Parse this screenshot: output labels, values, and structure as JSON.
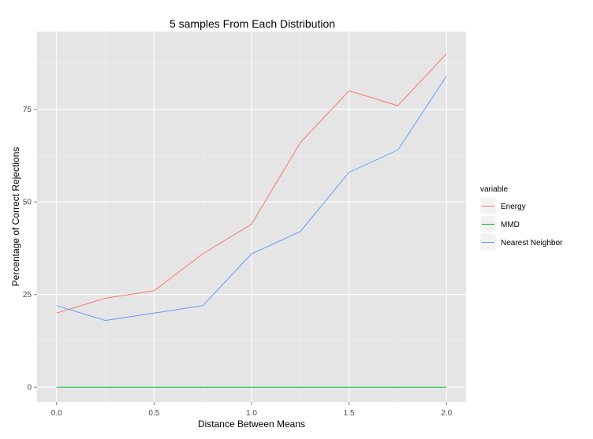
{
  "chart_data": {
    "type": "line",
    "title": "5 samples From Each Distribution",
    "xlabel": "Distance Between Means",
    "ylabel": "Percentage of Correct Rejections",
    "x": [
      0.0,
      0.25,
      0.5,
      0.75,
      1.0,
      1.25,
      1.5,
      1.75,
      2.0
    ],
    "xlim": [
      -0.1,
      2.1
    ],
    "ylim": [
      -4,
      96
    ],
    "x_ticks": [
      "0.0",
      "0.5",
      "1.0",
      "1.5",
      "2.0"
    ],
    "x_tick_values": [
      0.0,
      0.5,
      1.0,
      1.5,
      2.0
    ],
    "y_ticks": [
      "0",
      "25",
      "50",
      "75"
    ],
    "y_tick_values": [
      0,
      25,
      50,
      75
    ],
    "grid": true,
    "legend_placement": "right",
    "legend_title": "variable",
    "series": [
      {
        "name": "Energy",
        "color": "#F8766D",
        "values": [
          20,
          24,
          26,
          36,
          44,
          66,
          80,
          76,
          90
        ]
      },
      {
        "name": "MMD",
        "color": "#00BA38",
        "values": [
          0,
          0,
          0,
          0,
          0,
          0,
          0,
          0,
          0
        ]
      },
      {
        "name": "Nearest Neighbor",
        "color": "#619CFF",
        "values": [
          22,
          18,
          20,
          22,
          36,
          42,
          58,
          64,
          84
        ]
      }
    ]
  }
}
